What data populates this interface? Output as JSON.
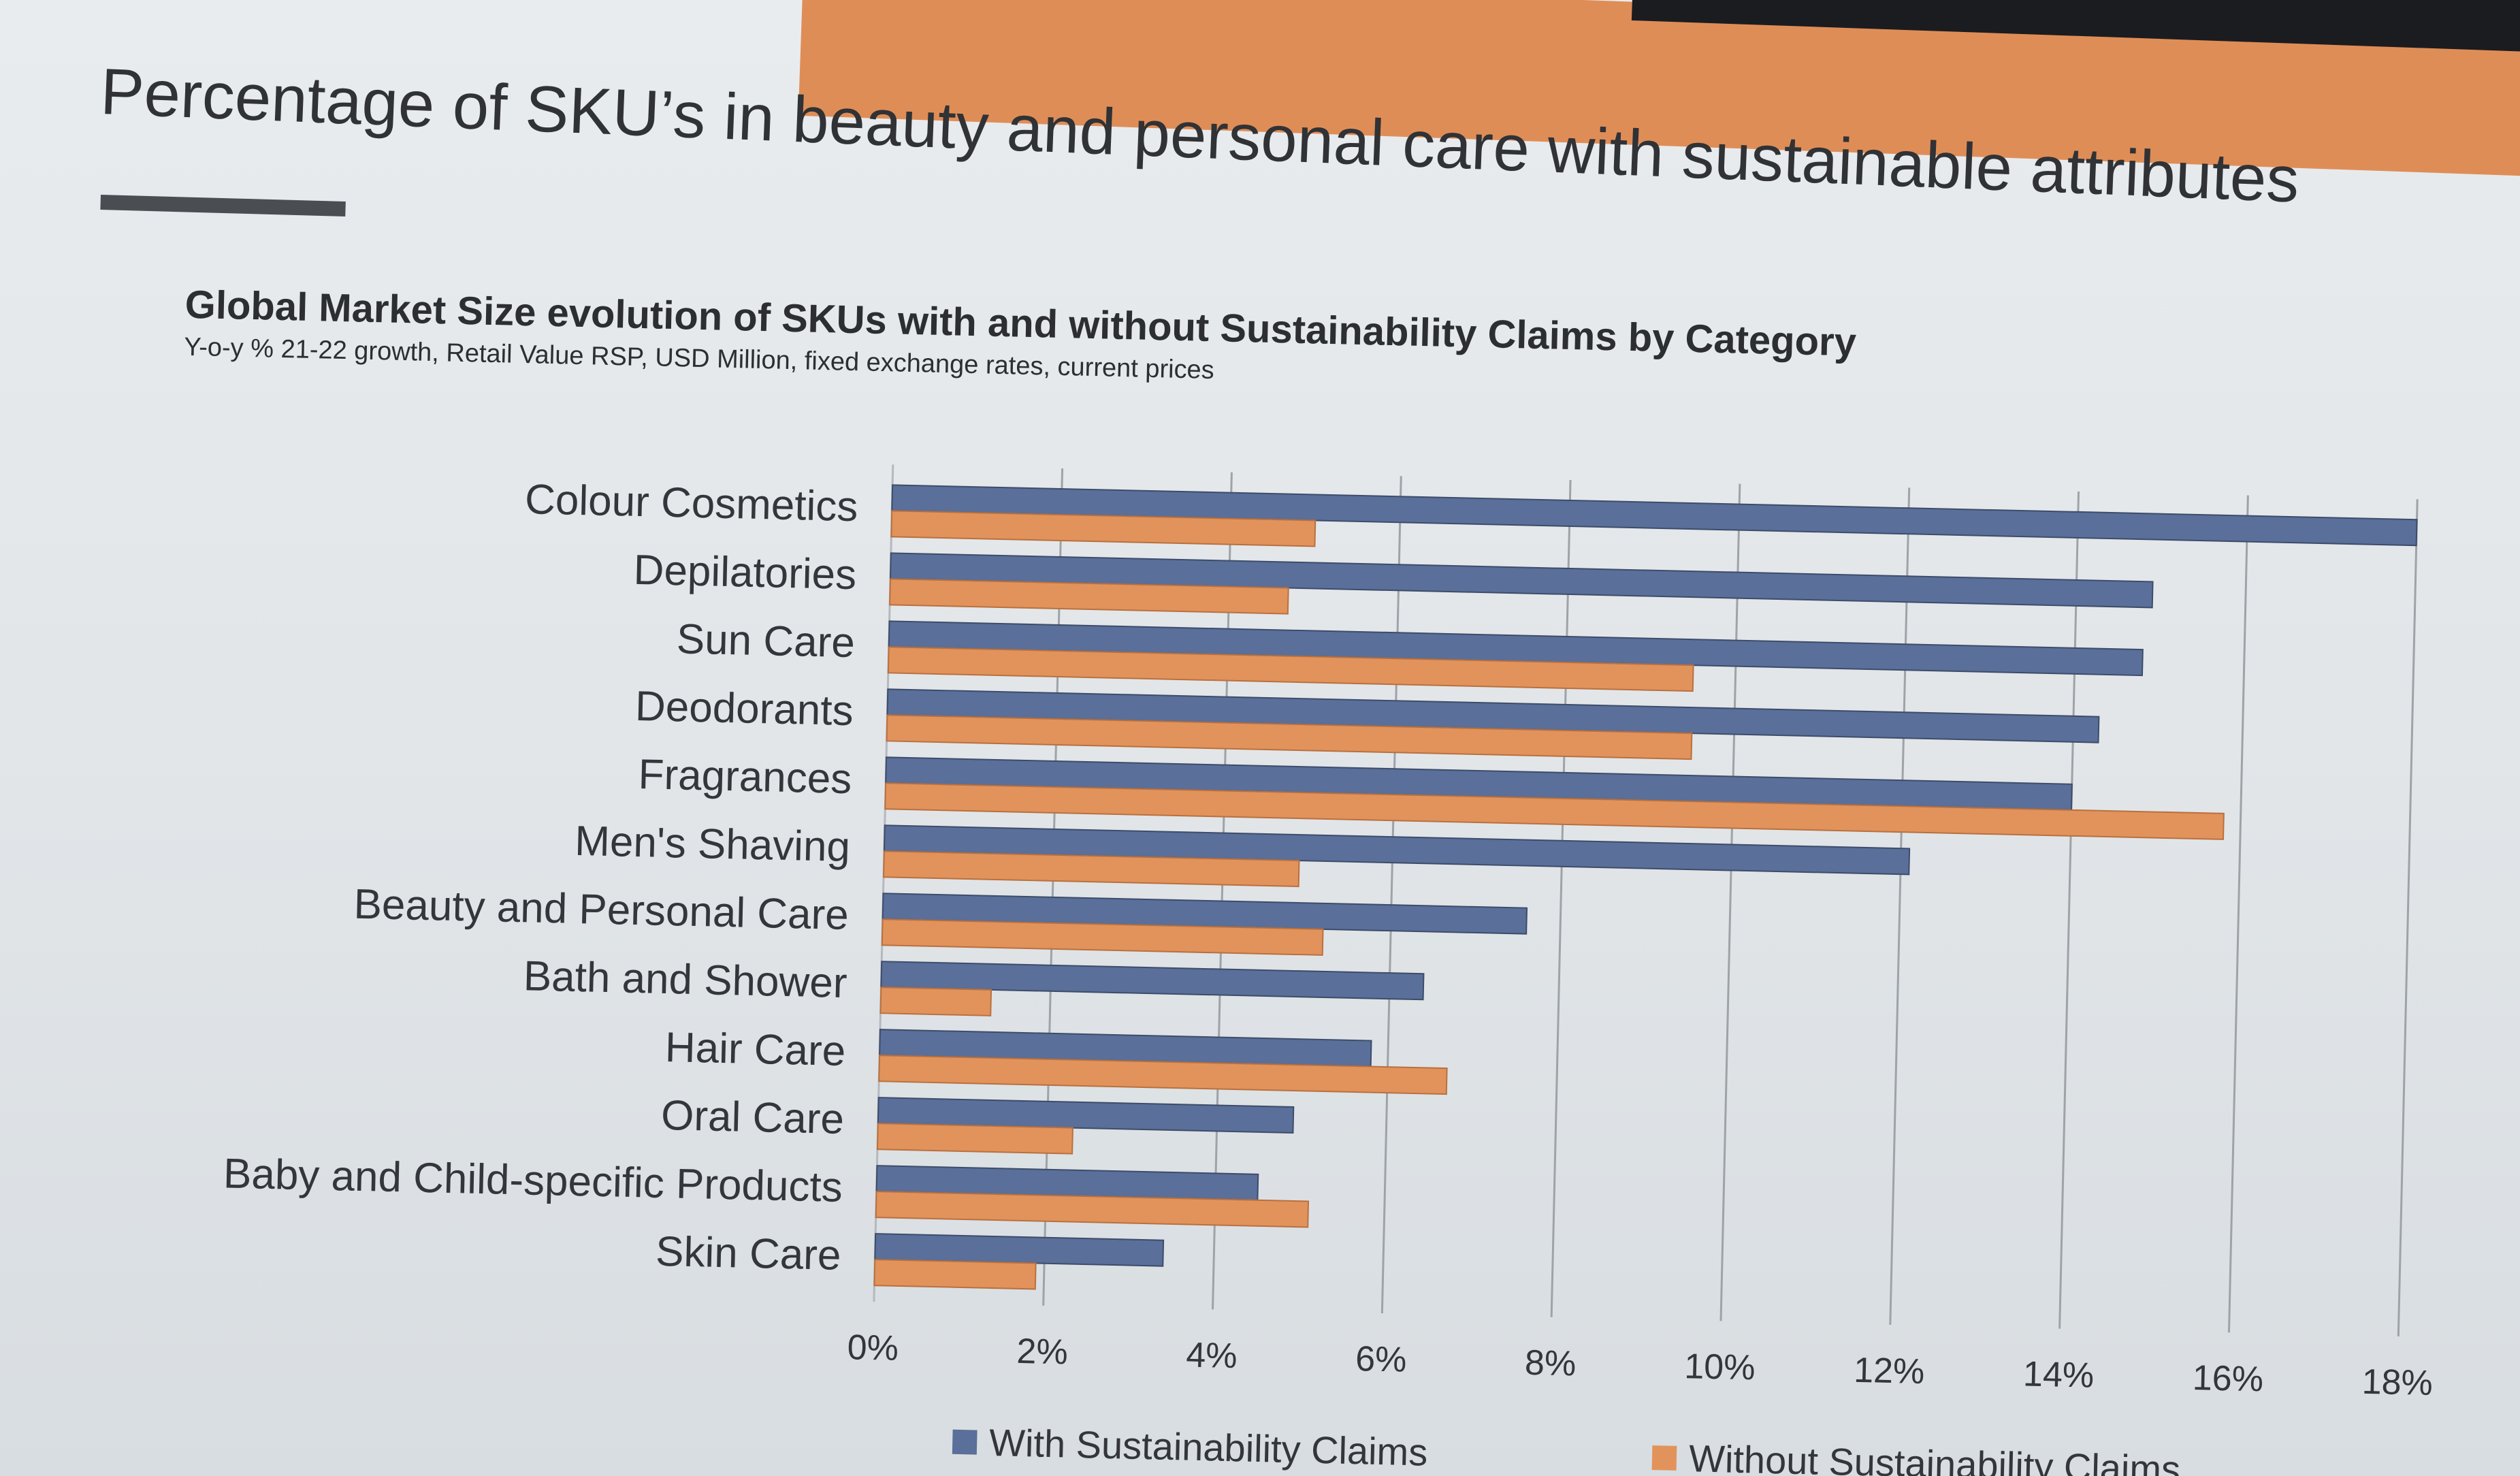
{
  "slide": {
    "title": "Percentage of SKU’s in beauty and personal care with sustainable attributes"
  },
  "colors": {
    "with": "#5a6f99",
    "without": "#e2935b",
    "grid": "#9ea3a8",
    "text": "#33363a"
  },
  "chart_data": {
    "type": "bar",
    "orientation": "horizontal",
    "title": "Global Market Size evolution of SKUs with and without Sustainability Claims by Category",
    "subtitle": "Y-o-y % 21-22 growth, Retail Value RSP, USD Million, fixed exchange rates, current prices",
    "xlim": [
      0,
      18
    ],
    "xticks": [
      "0%",
      "2%",
      "4%",
      "6%",
      "8%",
      "10%",
      "12%",
      "14%",
      "16%",
      "18%"
    ],
    "grid": true,
    "legend_position": "bottom",
    "categories": [
      "Colour Cosmetics",
      "Depilatories",
      "Sun Care",
      "Deodorants",
      "Fragrances",
      "Men's Shaving",
      "Beauty and Personal Care",
      "Bath and Shower",
      "Hair Care",
      "Oral Care",
      "Baby and Child-specific Products",
      "Skin Care"
    ],
    "series": [
      {
        "name": "With Sustainability Claims",
        "values": [
          18.0,
          14.9,
          14.8,
          14.3,
          14.0,
          12.1,
          7.6,
          6.4,
          5.8,
          4.9,
          4.5,
          3.4
        ]
      },
      {
        "name": "Without Sustainability Claims",
        "values": [
          5.0,
          4.7,
          9.5,
          9.5,
          15.8,
          4.9,
          5.2,
          1.3,
          6.7,
          2.3,
          5.1,
          1.9
        ]
      }
    ]
  }
}
